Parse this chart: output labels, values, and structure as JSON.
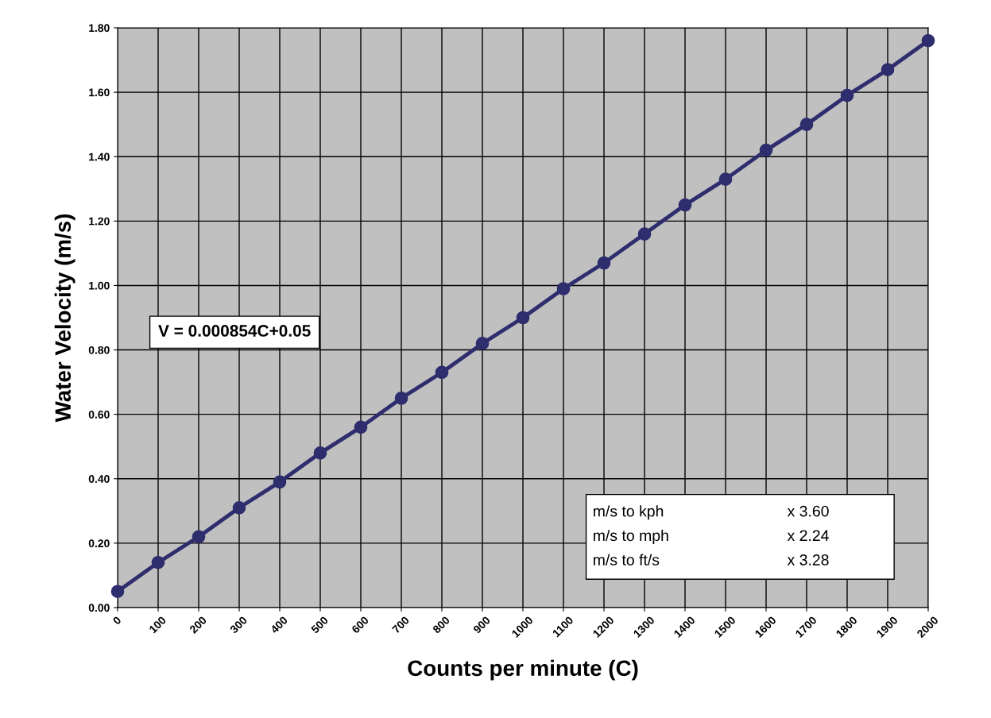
{
  "chart_data": {
    "type": "line",
    "xlabel": "Counts per minute (C)",
    "ylabel": "Water Velocity (m/s)",
    "x": [
      0,
      100,
      200,
      300,
      400,
      500,
      600,
      700,
      800,
      900,
      1000,
      1100,
      1200,
      1300,
      1400,
      1500,
      1600,
      1700,
      1800,
      1900,
      2000
    ],
    "series": [
      {
        "color": "#2e2d6e",
        "values": [
          0.05,
          0.14,
          0.22,
          0.31,
          0.39,
          0.48,
          0.56,
          0.65,
          0.73,
          0.82,
          0.9,
          0.99,
          1.07,
          1.16,
          1.25,
          1.33,
          1.42,
          1.5,
          1.59,
          1.67,
          1.76
        ]
      }
    ],
    "xlim": [
      0,
      2000
    ],
    "xticks": [
      0,
      100,
      200,
      300,
      400,
      500,
      600,
      700,
      800,
      900,
      1000,
      1100,
      1200,
      1300,
      1400,
      1500,
      1600,
      1700,
      1800,
      1900,
      2000
    ],
    "ylim": [
      0,
      1.8
    ],
    "yticks": [
      {
        "value": 0,
        "label": "0.00"
      },
      {
        "value": 0.2,
        "label": "0.20"
      },
      {
        "value": 0.4,
        "label": "0.40"
      },
      {
        "value": 0.6,
        "label": "0.60"
      },
      {
        "value": 0.8,
        "label": "0.80"
      },
      {
        "value": 1.0,
        "label": "1.00"
      },
      {
        "value": 1.2,
        "label": "1.20"
      },
      {
        "value": 1.4,
        "label": "1.40"
      },
      {
        "value": 1.6,
        "label": "1.60"
      },
      {
        "value": 1.8,
        "label": "1.80"
      }
    ],
    "grid": true,
    "marker": "circle",
    "line_style": "solid",
    "annotations": [
      "V = 0.000854C+0.05",
      "m/s to kph",
      "x 3.60",
      "m/s to mph",
      "x 2.24",
      "m/s to ft/s",
      "x 3.28"
    ]
  }
}
